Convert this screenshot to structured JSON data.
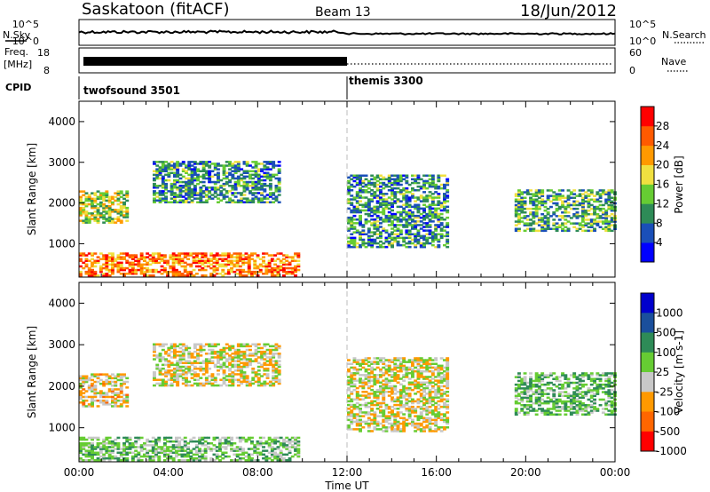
{
  "header": {
    "station": "Saskatoon (fitACF)",
    "beam": "Beam 13",
    "date": "18/Jun/2012"
  },
  "summary": {
    "left_labels": {
      "nsky": "N.Sky",
      "freq": "Freq.",
      "freq_unit": "[MHz]",
      "cpid": "CPID"
    },
    "right_labels": {
      "nsearch": "N.Search",
      "nave": "Nave"
    },
    "noise_ticks_left": [
      "10^5",
      "10^0"
    ],
    "noise_ticks_right": [
      "10^5",
      "10^0"
    ],
    "freq_ticks": [
      "18",
      "8"
    ],
    "nave_ticks": [
      "60",
      "0"
    ],
    "cpid_segments": [
      {
        "label": "twofsound 3501",
        "start_hour": 0
      },
      {
        "label": "themis 3300",
        "start_hour": 12
      }
    ]
  },
  "x_axis": {
    "label": "Time UT",
    "ticks": [
      "00:00",
      "04:00",
      "08:00",
      "12:00",
      "16:00",
      "20:00",
      "00:00"
    ]
  },
  "chart_data": [
    {
      "type": "heatmap",
      "name": "power",
      "ylabel": "Slant Range [km]",
      "xlim_hours": [
        0,
        24
      ],
      "ylim_km": [
        180,
        4500
      ],
      "yticks": [
        "4000",
        "3000",
        "2000",
        "1000"
      ],
      "colorbar": {
        "label": "Power [dB]",
        "ticks": [
          "28",
          "24",
          "20",
          "16",
          "12",
          "8",
          "4"
        ],
        "colors": [
          "#0000ff",
          "#1a4fb8",
          "#2e8b57",
          "#66cc33",
          "#f0e040",
          "#ff9900",
          "#ff5a00",
          "#ff0000"
        ]
      },
      "echo_regions_km_by_hour": [
        {
          "from_hour": 0,
          "to_hour": 9.8,
          "range_km": [
            200,
            750
          ],
          "typical_power_db": 24
        },
        {
          "from_hour": 0,
          "to_hour": 2.2,
          "range_km": [
            1500,
            2300
          ],
          "typical_power_db": 16
        },
        {
          "from_hour": 3.3,
          "to_hour": 9.0,
          "range_km": [
            2000,
            3000
          ],
          "typical_power_db": 10
        },
        {
          "from_hour": 12.0,
          "to_hour": 16.5,
          "range_km": [
            900,
            2700
          ],
          "typical_power_db": 10
        },
        {
          "from_hour": 19.5,
          "to_hour": 24.0,
          "range_km": [
            1300,
            2300
          ],
          "typical_power_db": 12
        }
      ]
    },
    {
      "type": "heatmap",
      "name": "velocity",
      "ylabel": "Slant Range [km]",
      "xlim_hours": [
        0,
        24
      ],
      "ylim_km": [
        180,
        4500
      ],
      "yticks": [
        "4000",
        "3000",
        "2000",
        "1000"
      ],
      "colorbar": {
        "label": "Velocity [m s-1]",
        "ticks": [
          "1000",
          "500",
          "100",
          "25",
          "-25",
          "-100",
          "-500",
          "-1000"
        ],
        "colors": [
          "#0000cc",
          "#1a4f9c",
          "#2e8b57",
          "#66cc33",
          "#c8c8c8",
          "#ff9900",
          "#ff6600",
          "#ff0000"
        ]
      },
      "echo_regions_km_by_hour": [
        {
          "from_hour": 0,
          "to_hour": 9.8,
          "range_km": [
            200,
            750
          ],
          "typical_velocity_ms": 60
        },
        {
          "from_hour": 0,
          "to_hour": 2.2,
          "range_km": [
            1500,
            2300
          ],
          "typical_velocity_ms": -30
        },
        {
          "from_hour": 3.3,
          "to_hour": 9.0,
          "range_km": [
            2000,
            3000
          ],
          "typical_velocity_ms": 0
        },
        {
          "from_hour": 12.0,
          "to_hour": 16.5,
          "range_km": [
            900,
            2700
          ],
          "typical_velocity_ms": 0
        },
        {
          "from_hour": 19.5,
          "to_hour": 24.0,
          "range_km": [
            1300,
            2300
          ],
          "typical_velocity_ms": 80
        }
      ]
    }
  ]
}
